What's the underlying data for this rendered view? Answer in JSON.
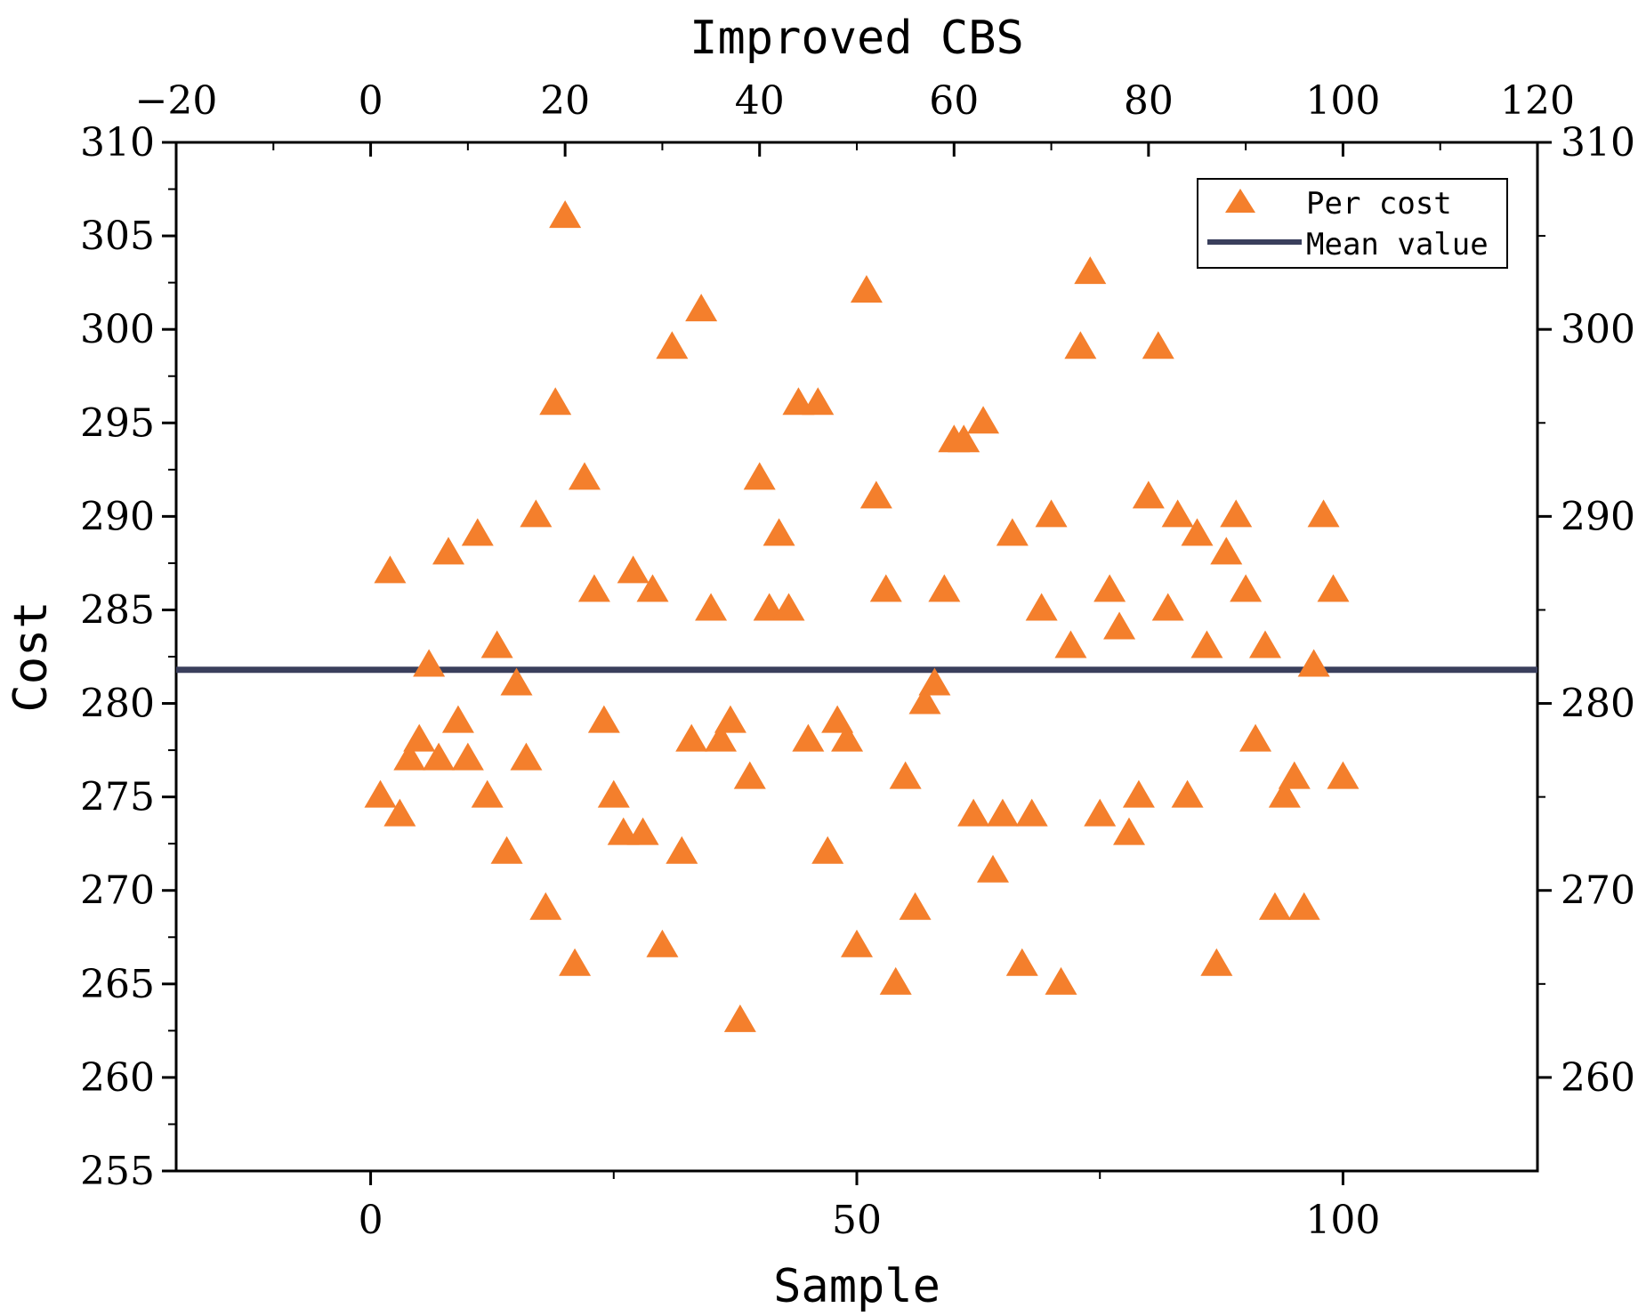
{
  "chart_data": {
    "type": "scatter",
    "title": "Improved CBS",
    "xlabel": "Sample",
    "ylabel": "Cost",
    "xlim": [
      -20,
      120
    ],
    "ylim": [
      255,
      310
    ],
    "x_ticks_bottom": [
      "0",
      "50",
      "100"
    ],
    "x_ticks_top": [
      "−20",
      "0",
      "20",
      "40",
      "60",
      "80",
      "100",
      "120"
    ],
    "y_ticks": [
      "255",
      "260",
      "265",
      "270",
      "275",
      "280",
      "285",
      "290",
      "295",
      "300",
      "305",
      "310"
    ],
    "y_ticks_right": [
      "260",
      "270",
      "280",
      "290",
      "300",
      "310"
    ],
    "legend": {
      "position": "top-right",
      "entries": [
        "Per cost",
        "Mean value"
      ]
    },
    "series": [
      {
        "name": "Per cost",
        "marker": "triangle",
        "color": "#F47F2C",
        "points": [
          [
            1,
            275
          ],
          [
            2,
            287
          ],
          [
            3,
            274
          ],
          [
            4,
            277
          ],
          [
            5,
            278
          ],
          [
            6,
            282
          ],
          [
            7,
            277
          ],
          [
            8,
            288
          ],
          [
            9,
            279
          ],
          [
            10,
            277
          ],
          [
            11,
            289
          ],
          [
            12,
            275
          ],
          [
            13,
            283
          ],
          [
            14,
            272
          ],
          [
            15,
            281
          ],
          [
            16,
            277
          ],
          [
            17,
            290
          ],
          [
            18,
            269
          ],
          [
            19,
            296
          ],
          [
            20,
            306
          ],
          [
            21,
            266
          ],
          [
            22,
            292
          ],
          [
            23,
            286
          ],
          [
            24,
            279
          ],
          [
            25,
            275
          ],
          [
            26,
            273
          ],
          [
            27,
            287
          ],
          [
            28,
            273
          ],
          [
            29,
            286
          ],
          [
            30,
            267
          ],
          [
            31,
            299
          ],
          [
            32,
            272
          ],
          [
            33,
            278
          ],
          [
            34,
            301
          ],
          [
            35,
            285
          ],
          [
            36,
            278
          ],
          [
            37,
            279
          ],
          [
            38,
            263
          ],
          [
            39,
            276
          ],
          [
            40,
            292
          ],
          [
            41,
            285
          ],
          [
            42,
            289
          ],
          [
            43,
            285
          ],
          [
            44,
            296
          ],
          [
            45,
            278
          ],
          [
            46,
            296
          ],
          [
            47,
            272
          ],
          [
            48,
            279
          ],
          [
            49,
            278
          ],
          [
            50,
            267
          ],
          [
            51,
            302
          ],
          [
            52,
            291
          ],
          [
            53,
            286
          ],
          [
            54,
            265
          ],
          [
            55,
            276
          ],
          [
            56,
            269
          ],
          [
            57,
            280
          ],
          [
            58,
            281
          ],
          [
            59,
            286
          ],
          [
            60,
            294
          ],
          [
            61,
            294
          ],
          [
            62,
            274
          ],
          [
            63,
            295
          ],
          [
            64,
            271
          ],
          [
            65,
            274
          ],
          [
            66,
            289
          ],
          [
            67,
            266
          ],
          [
            68,
            274
          ],
          [
            69,
            285
          ],
          [
            70,
            290
          ],
          [
            71,
            265
          ],
          [
            72,
            283
          ],
          [
            73,
            299
          ],
          [
            74,
            303
          ],
          [
            75,
            274
          ],
          [
            76,
            286
          ],
          [
            77,
            284
          ],
          [
            78,
            273
          ],
          [
            79,
            275
          ],
          [
            80,
            291
          ],
          [
            81,
            299
          ],
          [
            82,
            285
          ],
          [
            83,
            290
          ],
          [
            84,
            275
          ],
          [
            85,
            289
          ],
          [
            86,
            283
          ],
          [
            87,
            266
          ],
          [
            88,
            288
          ],
          [
            89,
            290
          ],
          [
            90,
            286
          ],
          [
            91,
            278
          ],
          [
            92,
            283
          ],
          [
            93,
            269
          ],
          [
            94,
            275
          ],
          [
            95,
            276
          ],
          [
            96,
            269
          ],
          [
            97,
            282
          ],
          [
            98,
            290
          ],
          [
            99,
            286
          ],
          [
            100,
            276
          ]
        ]
      },
      {
        "name": "Mean value",
        "type": "hline",
        "value": 281.8,
        "color": "#3A3F5C"
      }
    ]
  }
}
